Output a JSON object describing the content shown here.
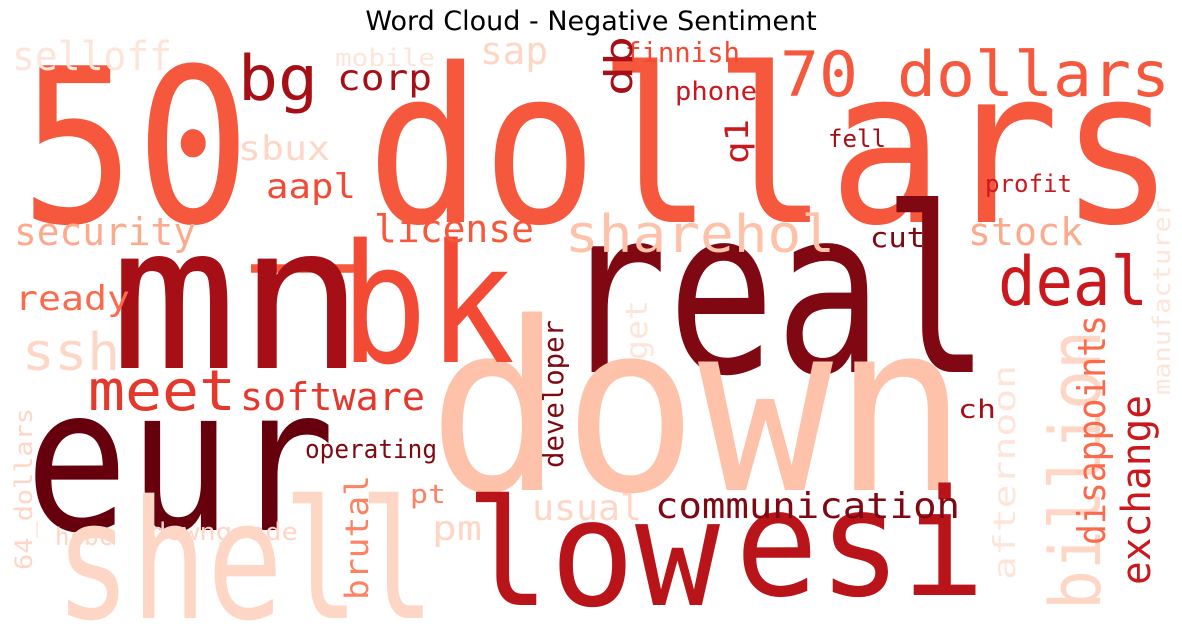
{
  "title": "Word Cloud - Negative Sentiment",
  "palette": {
    "darkest": "#67000d",
    "dark": "#7f0812",
    "deep_red": "#a50f15",
    "red": "#b91419",
    "crimson": "#cb181d",
    "bright_red": "#d42020",
    "scarlet": "#e5382c",
    "orange_red": "#f34a36",
    "coral": "#f6583e",
    "salmon": "#fb6b4b",
    "light_salmon": "#fc8262",
    "peach": "#fc9474",
    "pale_peach": "#fcaa8d",
    "blush": "#fdc2a9",
    "pale_blush": "#fed6c6",
    "faint": "#fee5d9"
  },
  "words": [
    {
      "id": "50_dollars",
      "text": "50_dollars",
      "color": "coral"
    },
    {
      "id": "real",
      "text": "real",
      "color": "dark"
    },
    {
      "id": "mn",
      "text": "mn",
      "color": "deep_red"
    },
    {
      "id": "down",
      "text": "down",
      "color": "blush"
    },
    {
      "id": "eur",
      "text": "eur",
      "color": "darkest"
    },
    {
      "id": "bk",
      "text": "bk",
      "color": "orange_red"
    },
    {
      "id": "shell",
      "text": "shell",
      "color": "pale_blush"
    },
    {
      "id": "low",
      "text": "low",
      "color": "red"
    },
    {
      "id": "esi",
      "text": "esi",
      "color": "red"
    },
    {
      "id": "70_dollars",
      "text": "70_dollars",
      "color": "coral"
    },
    {
      "id": "bg",
      "text": "bg",
      "color": "deep_red"
    },
    {
      "id": "deal",
      "text": "deal",
      "color": "crimson"
    },
    {
      "id": "billion",
      "text": "billion",
      "color": "pale_blush"
    },
    {
      "id": "sharehol",
      "text": "sharehol",
      "color": "blush"
    },
    {
      "id": "meet",
      "text": "meet",
      "color": "scarlet"
    },
    {
      "id": "ssh",
      "text": "ssh",
      "color": "pale_blush"
    },
    {
      "id": "selloff",
      "text": "selloff",
      "color": "faint"
    },
    {
      "id": "mobile",
      "text": "mobile",
      "color": "faint"
    },
    {
      "id": "sap",
      "text": "sap",
      "color": "pale_blush"
    },
    {
      "id": "finnish",
      "text": "finnish",
      "color": "orange_red"
    },
    {
      "id": "corp",
      "text": "corp",
      "color": "deep_red"
    },
    {
      "id": "db",
      "text": "db",
      "color": "deep_red"
    },
    {
      "id": "phone",
      "text": "phone",
      "color": "crimson"
    },
    {
      "id": "q1",
      "text": "q1",
      "color": "crimson"
    },
    {
      "id": "fell",
      "text": "fell",
      "color": "deep_red"
    },
    {
      "id": "sbux",
      "text": "sbux",
      "color": "pale_blush"
    },
    {
      "id": "profit",
      "text": "profit",
      "color": "crimson"
    },
    {
      "id": "aapl",
      "text": "aapl",
      "color": "orange_red"
    },
    {
      "id": "security",
      "text": "security",
      "color": "pale_peach"
    },
    {
      "id": "license",
      "text": "license",
      "color": "coral"
    },
    {
      "id": "cut",
      "text": "cut",
      "color": "dark"
    },
    {
      "id": "stock",
      "text": "stock",
      "color": "pale_peach"
    },
    {
      "id": "manufacturer",
      "text": "manufacturer",
      "color": "faint"
    },
    {
      "id": "ready",
      "text": "ready",
      "color": "salmon"
    },
    {
      "id": "get",
      "text": "get",
      "color": "faint"
    },
    {
      "id": "software",
      "text": "software",
      "color": "scarlet"
    },
    {
      "id": "developer",
      "text": "developer",
      "color": "dark"
    },
    {
      "id": "disappoints",
      "text": "disappoints",
      "color": "salmon"
    },
    {
      "id": "afternoon",
      "text": "afternoon",
      "color": "faint"
    },
    {
      "id": "exchange",
      "text": "exchange",
      "color": "crimson"
    },
    {
      "id": "ch",
      "text": "ch",
      "color": "deep_red"
    },
    {
      "id": "operating",
      "text": "operating",
      "color": "dark"
    },
    {
      "id": "64_dollars",
      "text": "64_dollars",
      "color": "pale_blush"
    },
    {
      "id": "hsbc",
      "text": "hsbc",
      "color": "pale_blush"
    },
    {
      "id": "downgrade",
      "text": "downgrade",
      "color": "pale_blush"
    },
    {
      "id": "brutal",
      "text": "brutal",
      "color": "light_salmon"
    },
    {
      "id": "pm",
      "text": "pm",
      "color": "pale_blush"
    },
    {
      "id": "pt",
      "text": "pt",
      "color": "light_salmon"
    },
    {
      "id": "usual",
      "text": "usual",
      "color": "pale_blush"
    },
    {
      "id": "communication",
      "text": "communication",
      "color": "dark"
    }
  ]
}
